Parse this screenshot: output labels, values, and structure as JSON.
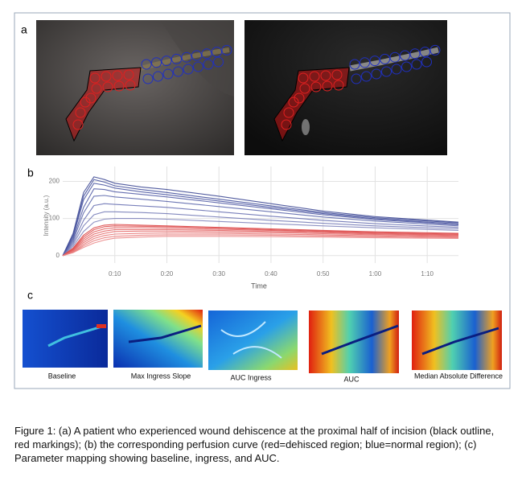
{
  "panels": {
    "a": "a",
    "b": "b",
    "c": "c"
  },
  "chart_data": {
    "type": "line",
    "xlabel": "Time",
    "ylabel": "Intensity (a.u.)",
    "x": [
      0,
      2,
      4,
      6,
      8,
      10,
      15,
      20,
      30,
      40,
      50,
      60,
      76
    ],
    "xlim": [
      0,
      76
    ],
    "xticks": [
      {
        "value": 10,
        "label": "0:10"
      },
      {
        "value": 20,
        "label": "0:20"
      },
      {
        "value": 30,
        "label": "0:30"
      },
      {
        "value": 40,
        "label": "0:40"
      },
      {
        "value": 50,
        "label": "0:50"
      },
      {
        "value": 60,
        "label": "1:00"
      },
      {
        "value": 70,
        "label": "1:10"
      }
    ],
    "ylim": [
      -20,
      240
    ],
    "yticks": [
      0,
      100,
      200
    ],
    "grid": true,
    "series": [
      {
        "color": "#35418f",
        "values": [
          0,
          60,
          170,
          212,
          205,
          195,
          185,
          178,
          160,
          140,
          120,
          105,
          90
        ]
      },
      {
        "color": "#3a4696",
        "values": [
          0,
          55,
          160,
          205,
          198,
          188,
          178,
          170,
          152,
          134,
          116,
          102,
          88
        ]
      },
      {
        "color": "#424e9c",
        "values": [
          0,
          50,
          150,
          195,
          190,
          182,
          172,
          164,
          147,
          130,
          113,
          99,
          85
        ]
      },
      {
        "color": "#4b56a2",
        "values": [
          0,
          45,
          130,
          180,
          178,
          172,
          165,
          158,
          142,
          126,
          110,
          97,
          83
        ]
      },
      {
        "color": "#5560a8",
        "values": [
          0,
          40,
          115,
          160,
          162,
          158,
          152,
          146,
          132,
          118,
          104,
          93,
          80
        ]
      },
      {
        "color": "#6069ae",
        "values": [
          0,
          35,
          95,
          135,
          140,
          138,
          134,
          130,
          118,
          106,
          95,
          86,
          76
        ]
      },
      {
        "color": "#6d74b3",
        "values": [
          0,
          30,
          80,
          110,
          118,
          118,
          116,
          113,
          104,
          95,
          87,
          80,
          72
        ]
      },
      {
        "color": "#7a7fb8",
        "values": [
          0,
          25,
          65,
          90,
          98,
          100,
          100,
          98,
          92,
          86,
          80,
          75,
          68
        ]
      },
      {
        "color": "#d93b3b",
        "values": [
          0,
          20,
          55,
          75,
          82,
          84,
          82,
          80,
          76,
          72,
          68,
          64,
          60
        ]
      },
      {
        "color": "#dc4545",
        "values": [
          0,
          18,
          50,
          70,
          78,
          80,
          79,
          78,
          74,
          70,
          66,
          62,
          58
        ]
      },
      {
        "color": "#e05050",
        "values": [
          0,
          16,
          45,
          64,
          72,
          75,
          75,
          74,
          71,
          68,
          64,
          60,
          56
        ]
      },
      {
        "color": "#e25a5a",
        "values": [
          0,
          14,
          40,
          58,
          66,
          70,
          70,
          70,
          68,
          65,
          62,
          58,
          54
        ]
      },
      {
        "color": "#e46464",
        "values": [
          0,
          12,
          35,
          52,
          60,
          65,
          66,
          66,
          64,
          62,
          59,
          56,
          52
        ]
      },
      {
        "color": "#e66e6e",
        "values": [
          0,
          10,
          30,
          46,
          54,
          58,
          60,
          61,
          60,
          58,
          56,
          53,
          50
        ]
      },
      {
        "color": "#e87878",
        "values": [
          0,
          9,
          26,
          40,
          48,
          52,
          55,
          56,
          56,
          55,
          53,
          51,
          48
        ]
      },
      {
        "color": "#ea8282",
        "values": [
          0,
          8,
          22,
          34,
          42,
          47,
          50,
          52,
          52,
          51,
          50,
          48,
          46
        ]
      }
    ]
  },
  "maps": [
    "Baseline",
    "Max Ingress Slope",
    "AUC Ingress",
    "AUC",
    "Median Absolute Difference"
  ],
  "caption": "Figure 1: (a) A patient who experienced wound dehiscence at the proximal half of incision (black outline, red markings); (b) the corresponding perfusion curve (red=dehisced region; blue=normal region); (c) Parameter mapping showing baseline, ingress, and AUC."
}
